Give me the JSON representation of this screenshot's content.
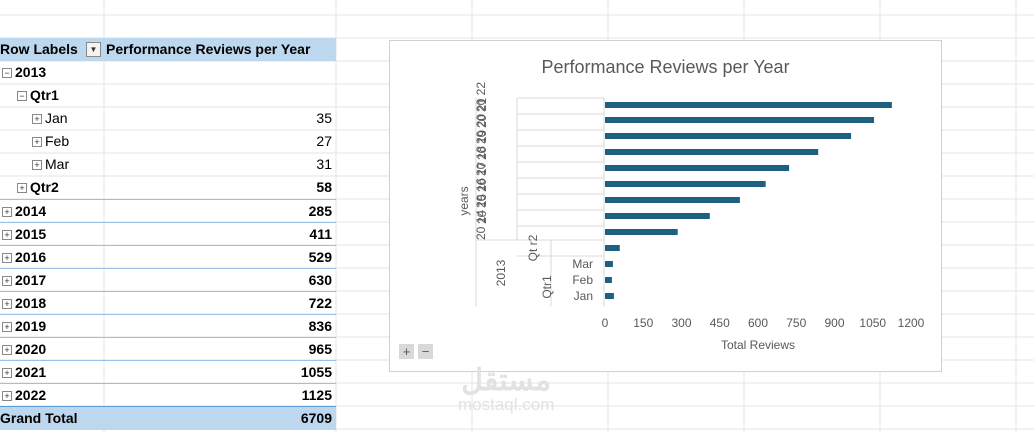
{
  "pivot": {
    "header_row_labels": "Row Labels",
    "header_value": "Performance Reviews per Year",
    "rows": [
      {
        "label": "2013",
        "value": "",
        "level": 0,
        "toggle": "−",
        "bold": true
      },
      {
        "label": "Qtr1",
        "value": "",
        "level": 1,
        "toggle": "−",
        "bold": true
      },
      {
        "label": "Jan",
        "value": "35",
        "level": 2,
        "toggle": "+",
        "bold": false
      },
      {
        "label": "Feb",
        "value": "27",
        "level": 2,
        "toggle": "+",
        "bold": false
      },
      {
        "label": "Mar",
        "value": "31",
        "level": 2,
        "toggle": "+",
        "bold": false
      },
      {
        "label": "Qtr2",
        "value": "58",
        "level": 1,
        "toggle": "+",
        "bold": true
      },
      {
        "label": "2014",
        "value": "285",
        "level": 0,
        "toggle": "+",
        "bold": true
      },
      {
        "label": "2015",
        "value": "411",
        "level": 0,
        "toggle": "+",
        "bold": true
      },
      {
        "label": "2016",
        "value": "529",
        "level": 0,
        "toggle": "+",
        "bold": true
      },
      {
        "label": "2017",
        "value": "630",
        "level": 0,
        "toggle": "+",
        "bold": true
      },
      {
        "label": "2018",
        "value": "722",
        "level": 0,
        "toggle": "+",
        "bold": true
      },
      {
        "label": "2019",
        "value": "836",
        "level": 0,
        "toggle": "+",
        "bold": true
      },
      {
        "label": "2020",
        "value": "965",
        "level": 0,
        "toggle": "+",
        "bold": true
      },
      {
        "label": "2021",
        "value": "1055",
        "level": 0,
        "toggle": "+",
        "bold": true
      },
      {
        "label": "2022",
        "value": "1125",
        "level": 0,
        "toggle": "+",
        "bold": true
      }
    ],
    "grand_total_label": "Grand Total",
    "grand_total_value": "6709"
  },
  "chart_data": {
    "type": "bar",
    "orientation": "horizontal",
    "title": "Performance Reviews per Year",
    "xlabel": "Total Reviews",
    "ylabel": "years",
    "xlim": [
      0,
      1200
    ],
    "xticks": [
      "0",
      "150",
      "300",
      "450",
      "600",
      "750",
      "900",
      "1050",
      "1200"
    ],
    "categories": [
      "Jan",
      "Feb",
      "Mar",
      "Qtr2",
      "2014",
      "2015",
      "2016",
      "2017",
      "2018",
      "2019",
      "2020",
      "2021",
      "2022"
    ],
    "values": [
      35,
      27,
      31,
      58,
      285,
      411,
      529,
      630,
      722,
      836,
      965,
      1055,
      1125
    ],
    "group_labels": [
      "Qtr1",
      "Qt r2",
      "2013",
      "20 14",
      "20 15",
      "20 16",
      "20 17",
      "20 18",
      "20 19",
      "20 20",
      "20 21",
      "20 22"
    ],
    "bar_color": "#1f5f7f",
    "grid": false,
    "legend": "none"
  },
  "chart_controls": {
    "zoom_in": "+",
    "zoom_out": "−"
  },
  "watermark": {
    "arabic": "مستقل",
    "latin": "mostaql.com"
  }
}
